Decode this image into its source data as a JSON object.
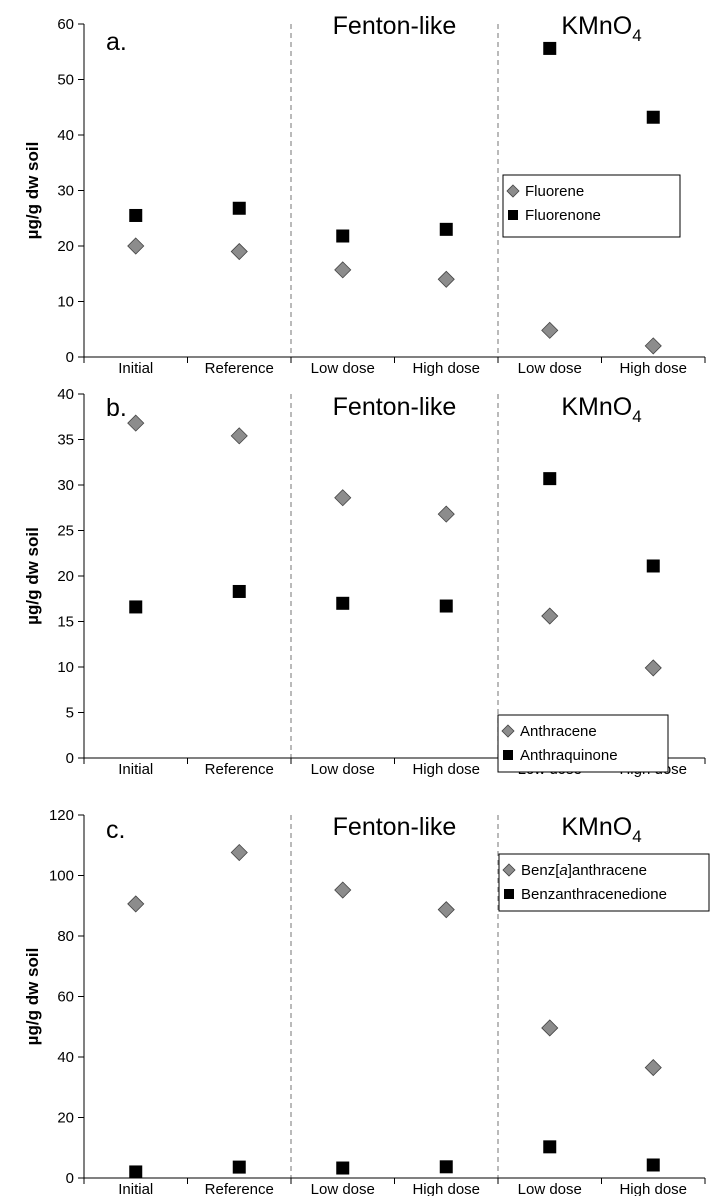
{
  "chart_data": [
    {
      "type": "scatter",
      "panel_label": "a.",
      "categories": [
        "Initial",
        "Reference",
        "Low dose",
        "High dose",
        "Low dose",
        "High dose"
      ],
      "group_labels": [
        {
          "text": "Fenton-like",
          "sub": ""
        },
        {
          "text": "KMnO",
          "sub": "4"
        }
      ],
      "ylabel": "µg/g dw soil",
      "ylim": [
        0,
        60
      ],
      "yticks": [
        0,
        10,
        20,
        30,
        40,
        50,
        60
      ],
      "legend_position": "right",
      "series": [
        {
          "name": "Fluorene",
          "marker": "diamond",
          "color": "#8c8c8c",
          "values": [
            20.0,
            19.0,
            15.7,
            14.0,
            4.8,
            2.0
          ]
        },
        {
          "name": "Fluorenone",
          "marker": "square",
          "color": "#000000",
          "values": [
            25.5,
            26.8,
            21.8,
            23.0,
            55.6,
            43.2
          ]
        }
      ]
    },
    {
      "type": "scatter",
      "panel_label": "b.",
      "categories": [
        "Initial",
        "Reference",
        "Low dose",
        "High dose",
        "Low dose",
        "High dose"
      ],
      "group_labels": [
        {
          "text": "Fenton-like",
          "sub": ""
        },
        {
          "text": "KMnO",
          "sub": "4"
        }
      ],
      "ylabel": "µg/g dw soil",
      "ylim": [
        0,
        40
      ],
      "yticks": [
        0,
        5,
        10,
        15,
        20,
        25,
        30,
        35,
        40
      ],
      "legend_position": "bottom-right",
      "series": [
        {
          "name": "Anthracene",
          "marker": "diamond",
          "color": "#8c8c8c",
          "values": [
            36.8,
            35.4,
            28.6,
            26.8,
            15.6,
            9.9
          ]
        },
        {
          "name": "Anthraquinone",
          "marker": "square",
          "color": "#000000",
          "values": [
            16.6,
            18.3,
            17.0,
            16.7,
            30.7,
            21.1
          ]
        }
      ]
    },
    {
      "type": "scatter",
      "panel_label": "c.",
      "categories": [
        "Initial",
        "Reference",
        "Low dose",
        "High dose",
        "Low dose",
        "High dose"
      ],
      "group_labels": [
        {
          "text": "Fenton-like",
          "sub": ""
        },
        {
          "text": "KMnO",
          "sub": "4"
        }
      ],
      "ylabel": "µg/g dw soil",
      "ylim": [
        0,
        120
      ],
      "yticks": [
        0,
        20,
        40,
        60,
        80,
        100,
        120
      ],
      "legend_position": "top-right",
      "series": [
        {
          "name": "Benz[a]anthracene",
          "name_parts": [
            "Benz[",
            "a",
            "]anthracene"
          ],
          "marker": "diamond",
          "color": "#8c8c8c",
          "values": [
            90.6,
            107.6,
            95.2,
            88.7,
            49.6,
            36.5
          ]
        },
        {
          "name": "Benzanthracenedione",
          "marker": "square",
          "color": "#000000",
          "values": [
            2.0,
            3.6,
            3.3,
            3.7,
            10.3,
            4.3
          ]
        }
      ]
    }
  ]
}
